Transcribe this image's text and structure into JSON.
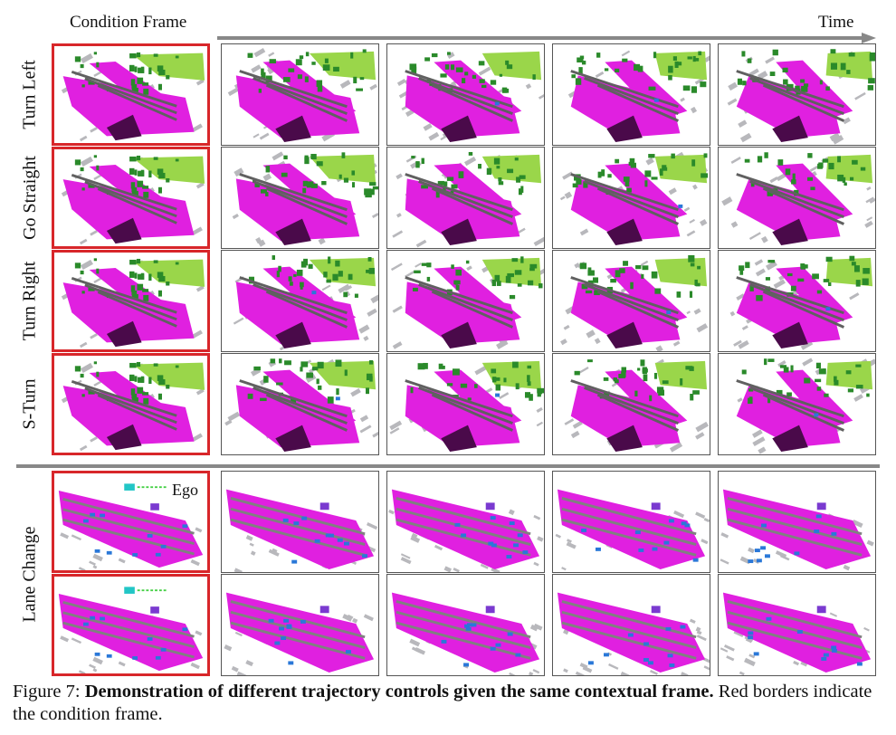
{
  "header": {
    "condition_label": "Condition Frame",
    "time_label": "Time"
  },
  "rows": [
    {
      "label": "Turn Left",
      "scene": "city"
    },
    {
      "label": "Go Straight",
      "scene": "city"
    },
    {
      "label": "Turn Right",
      "scene": "city"
    },
    {
      "label": "S-Turn",
      "scene": "city"
    },
    {
      "label": "Lane Change",
      "scene": "road"
    }
  ],
  "ego_label": "Ego",
  "colors": {
    "condition_border": "#d8262a",
    "road": "#e020e0",
    "vegetation": "#2a8a2a",
    "terrain": "#9ad64a",
    "building": "#b8b8bc",
    "sidewalk": "#4a0a4a",
    "vehicle": "#2a78d8",
    "ego_marker": "#22c6c6",
    "trajectory": "#46d046"
  },
  "caption": {
    "prefix": "Figure 7: ",
    "bold": "Demonstration of different trajectory controls given the same contextual frame.",
    "rest": " Red borders indicate the condition frame."
  }
}
